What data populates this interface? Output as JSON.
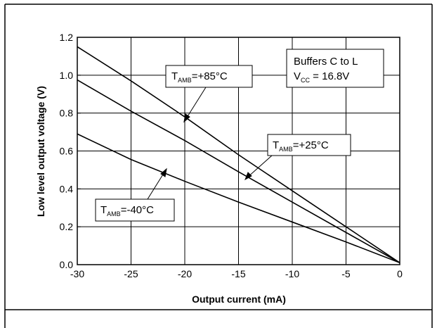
{
  "chart_data": {
    "type": "line",
    "xlabel": "Output current (mA)",
    "ylabel": "Low level output voltage (V)",
    "xlim": [
      -30,
      0
    ],
    "ylim": [
      0.0,
      1.2
    ],
    "x_ticks": [
      "-30",
      "-25",
      "-20",
      "-15",
      "-10",
      "-5",
      "0"
    ],
    "y_ticks": [
      "0.0",
      "0.2",
      "0.4",
      "0.6",
      "0.8",
      "1.0",
      "1.2"
    ],
    "grid": true,
    "series": [
      {
        "name_main": "T",
        "name_sub": "AMB",
        "name_rest": "=+85°C",
        "x": [
          -30,
          -25,
          -20,
          -15,
          -10,
          -5,
          0
        ],
        "y": [
          1.15,
          0.97,
          0.78,
          0.58,
          0.39,
          0.2,
          0.01
        ]
      },
      {
        "name_main": "T",
        "name_sub": "AMB",
        "name_rest": "=+25°C",
        "x": [
          -30,
          -25,
          -20,
          -15,
          -10,
          -5,
          0
        ],
        "y": [
          0.975,
          0.81,
          0.655,
          0.49,
          0.33,
          0.17,
          0.01
        ]
      },
      {
        "name_main": "T",
        "name_sub": "AMB",
        "name_rest": "=-40°C",
        "x": [
          -30,
          -25,
          -20,
          -15,
          -10,
          -5,
          0
        ],
        "y": [
          0.69,
          0.555,
          0.44,
          0.33,
          0.225,
          0.12,
          0.01
        ]
      }
    ],
    "annotation": {
      "line1": "Buffers C to L",
      "line2_main": "V",
      "line2_sub": "CC",
      "line2_rest": " = 16.8V"
    }
  }
}
